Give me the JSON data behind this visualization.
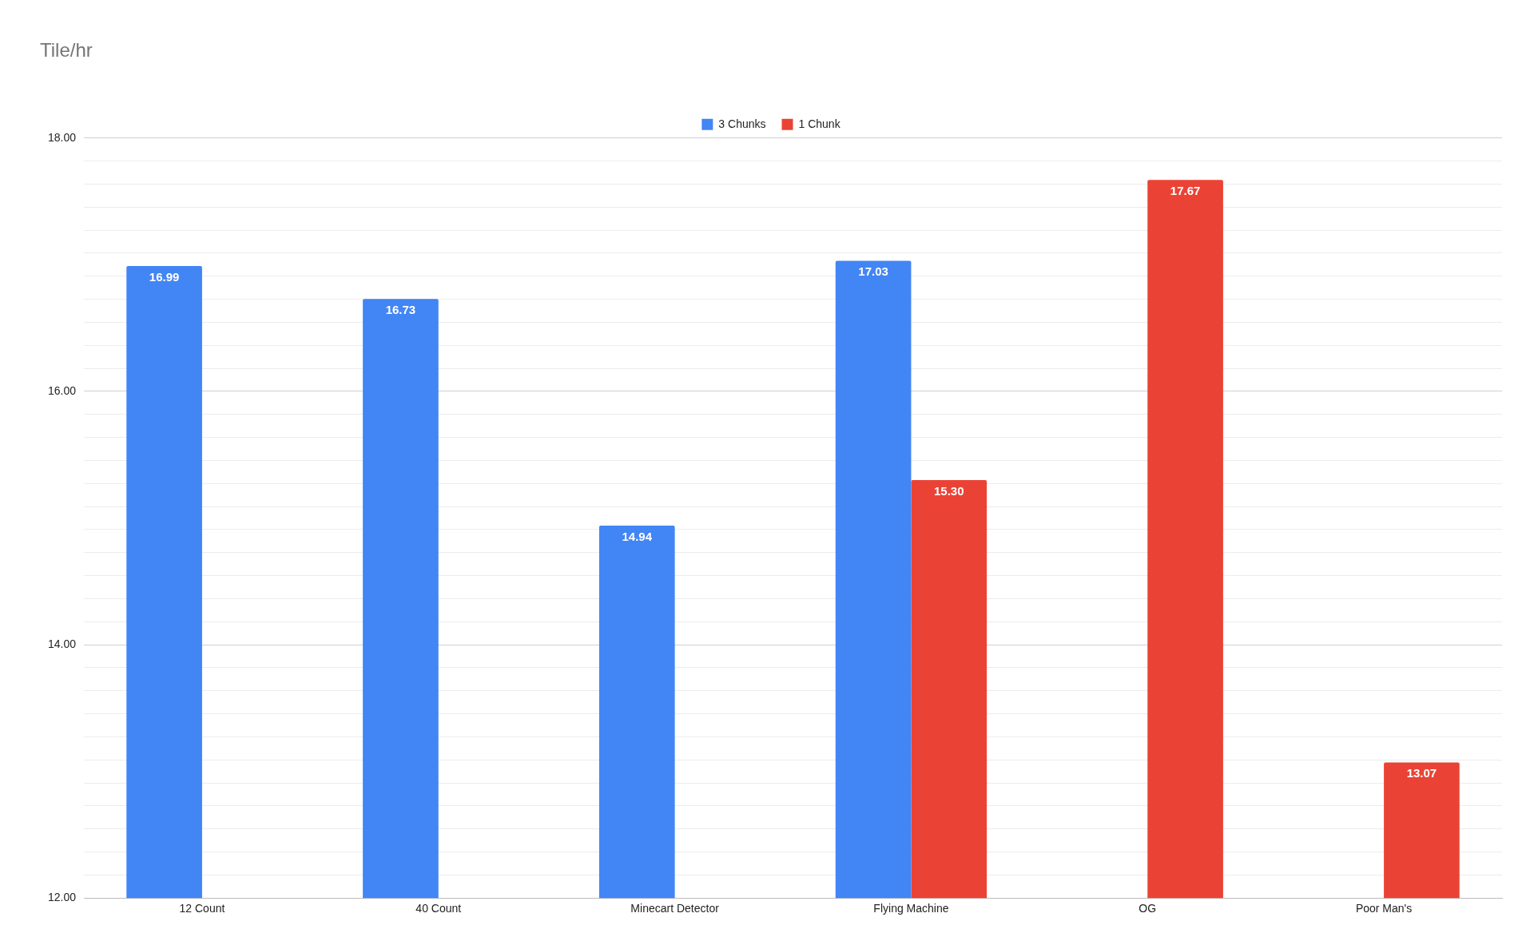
{
  "chart_data": {
    "type": "bar",
    "title": "Tile/hr",
    "categories": [
      "12 Count",
      "40 Count",
      "Minecart Detector",
      "Flying Machine",
      "OG",
      "Poor Man's"
    ],
    "series": [
      {
        "name": "3 Chunks",
        "color": "#4285f4",
        "values": [
          16.99,
          16.73,
          14.94,
          17.03,
          null,
          null
        ],
        "value_labels": [
          "16.99",
          "16.73",
          "14.94",
          "17.03",
          null,
          null
        ]
      },
      {
        "name": "1 Chunk",
        "color": "#ea4335",
        "values": [
          null,
          null,
          null,
          15.3,
          17.67,
          13.07
        ],
        "value_labels": [
          null,
          null,
          null,
          "15.30",
          "17.67",
          "13.07"
        ]
      }
    ],
    "ylim": [
      12,
      18
    ],
    "yticks": [
      {
        "value": 12,
        "label": "12.00"
      },
      {
        "value": 12.1818,
        "label": null
      },
      {
        "value": 12.3636,
        "label": null
      },
      {
        "value": 12.5455,
        "label": null
      },
      {
        "value": 12.7273,
        "label": null
      },
      {
        "value": 12.9091,
        "label": null
      },
      {
        "value": 13.0909,
        "label": null
      },
      {
        "value": 13.2727,
        "label": null
      },
      {
        "value": 13.4545,
        "label": null
      },
      {
        "value": 13.6364,
        "label": null
      },
      {
        "value": 13.8182,
        "label": null
      },
      {
        "value": 14,
        "label": "14.00"
      },
      {
        "value": 14.1818,
        "label": null
      },
      {
        "value": 14.3636,
        "label": null
      },
      {
        "value": 14.5455,
        "label": null
      },
      {
        "value": 14.7273,
        "label": null
      },
      {
        "value": 14.9091,
        "label": null
      },
      {
        "value": 15.0909,
        "label": null
      },
      {
        "value": 15.2727,
        "label": null
      },
      {
        "value": 15.4545,
        "label": null
      },
      {
        "value": 15.6364,
        "label": null
      },
      {
        "value": 15.8182,
        "label": null
      },
      {
        "value": 16,
        "label": "16.00"
      },
      {
        "value": 16.1818,
        "label": null
      },
      {
        "value": 16.3636,
        "label": null
      },
      {
        "value": 16.5455,
        "label": null
      },
      {
        "value": 16.7273,
        "label": null
      },
      {
        "value": 16.9091,
        "label": null
      },
      {
        "value": 17.0909,
        "label": null
      },
      {
        "value": 17.2727,
        "label": null
      },
      {
        "value": 17.4545,
        "label": null
      },
      {
        "value": 17.6364,
        "label": null
      },
      {
        "value": 17.8182,
        "label": null
      },
      {
        "value": 18,
        "label": "18.00"
      }
    ],
    "grid": "y",
    "legend": "top"
  }
}
